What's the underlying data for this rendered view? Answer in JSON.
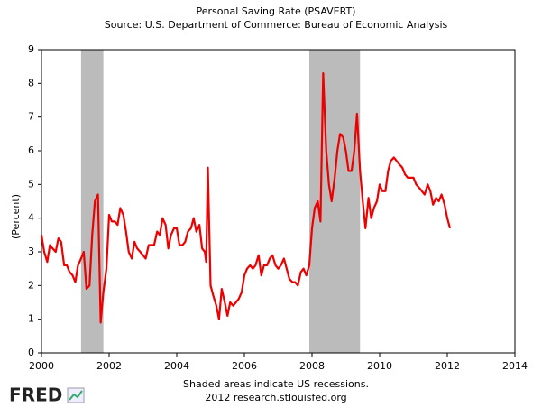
{
  "chart_data": {
    "type": "line",
    "title": "Personal Saving Rate (PSAVERT)",
    "subtitle": "Source: U.S. Department of Commerce: Bureau of Economic Analysis",
    "y_label": "(Percent)",
    "note": "Shaded areas indicate US recessions.",
    "source": "2012 research.stlouisfed.org",
    "logo": "FRED",
    "xlim": [
      2000,
      2014
    ],
    "xticks": [
      2000,
      2002,
      2004,
      2006,
      2008,
      2010,
      2012,
      2014
    ],
    "ylim": [
      0,
      9
    ],
    "yticks": [
      0,
      1,
      2,
      3,
      4,
      5,
      6,
      7,
      8,
      9
    ],
    "recessions": [
      [
        2001.17,
        2001.83
      ],
      [
        2007.92,
        2009.42
      ]
    ],
    "recession_color": "#bbbbbb",
    "series": [
      {
        "name": "PSAVERT",
        "color": "#ee0000",
        "x": [
          2000.0,
          2000.08,
          2000.17,
          2000.25,
          2000.33,
          2000.42,
          2000.5,
          2000.58,
          2000.67,
          2000.75,
          2000.83,
          2000.92,
          2001.0,
          2001.08,
          2001.17,
          2001.25,
          2001.33,
          2001.42,
          2001.5,
          2001.58,
          2001.67,
          2001.75,
          2001.83,
          2001.92,
          2002.0,
          2002.08,
          2002.17,
          2002.25,
          2002.33,
          2002.42,
          2002.5,
          2002.58,
          2002.67,
          2002.75,
          2002.83,
          2002.92,
          2003.0,
          2003.08,
          2003.17,
          2003.25,
          2003.33,
          2003.42,
          2003.5,
          2003.58,
          2003.67,
          2003.75,
          2003.83,
          2003.92,
          2004.0,
          2004.08,
          2004.17,
          2004.25,
          2004.33,
          2004.42,
          2004.5,
          2004.58,
          2004.67,
          2004.75,
          2004.83,
          2004.87,
          2004.92,
          2005.0,
          2005.08,
          2005.17,
          2005.25,
          2005.33,
          2005.42,
          2005.5,
          2005.58,
          2005.67,
          2005.75,
          2005.83,
          2005.92,
          2006.0,
          2006.08,
          2006.17,
          2006.25,
          2006.33,
          2006.42,
          2006.5,
          2006.58,
          2006.67,
          2006.75,
          2006.83,
          2006.92,
          2007.0,
          2007.08,
          2007.17,
          2007.25,
          2007.33,
          2007.42,
          2007.5,
          2007.58,
          2007.67,
          2007.75,
          2007.83,
          2007.92,
          2008.0,
          2008.08,
          2008.17,
          2008.25,
          2008.33,
          2008.42,
          2008.5,
          2008.58,
          2008.67,
          2008.75,
          2008.83,
          2008.92,
          2009.0,
          2009.08,
          2009.17,
          2009.25,
          2009.33,
          2009.42,
          2009.5,
          2009.58,
          2009.67,
          2009.75,
          2009.83,
          2009.92,
          2010.0,
          2010.08,
          2010.17,
          2010.25,
          2010.33,
          2010.42,
          2010.5,
          2010.58,
          2010.67,
          2010.75,
          2010.83,
          2010.92,
          2011.0,
          2011.08,
          2011.17,
          2011.25,
          2011.33,
          2011.42,
          2011.5,
          2011.58,
          2011.67,
          2011.75,
          2011.83,
          2011.92,
          2012.0,
          2012.08
        ],
        "values": [
          3.5,
          3.0,
          2.7,
          3.2,
          3.1,
          3.0,
          3.4,
          3.3,
          2.6,
          2.6,
          2.4,
          2.3,
          2.1,
          2.6,
          2.8,
          3.0,
          1.9,
          2.0,
          3.5,
          4.5,
          4.7,
          0.9,
          1.8,
          2.5,
          4.1,
          3.9,
          3.9,
          3.8,
          4.3,
          4.1,
          3.6,
          3.0,
          2.8,
          3.3,
          3.1,
          3.0,
          2.9,
          2.8,
          3.2,
          3.2,
          3.2,
          3.6,
          3.5,
          4.0,
          3.8,
          3.1,
          3.5,
          3.7,
          3.7,
          3.2,
          3.2,
          3.3,
          3.6,
          3.7,
          4.0,
          3.6,
          3.8,
          3.1,
          3.0,
          2.7,
          5.5,
          2.0,
          1.7,
          1.4,
          1.0,
          1.9,
          1.5,
          1.1,
          1.5,
          1.4,
          1.5,
          1.6,
          1.8,
          2.3,
          2.5,
          2.6,
          2.5,
          2.6,
          2.9,
          2.3,
          2.6,
          2.6,
          2.8,
          2.9,
          2.6,
          2.5,
          2.6,
          2.8,
          2.5,
          2.2,
          2.1,
          2.1,
          2.0,
          2.4,
          2.5,
          2.3,
          2.6,
          3.7,
          4.3,
          4.5,
          3.9,
          8.3,
          6.0,
          5.0,
          4.5,
          5.2,
          6.0,
          6.5,
          6.4,
          6.0,
          5.4,
          5.4,
          6.0,
          7.1,
          5.4,
          4.5,
          3.7,
          4.6,
          4.0,
          4.3,
          4.5,
          5.0,
          4.8,
          4.8,
          5.4,
          5.7,
          5.8,
          5.7,
          5.6,
          5.5,
          5.3,
          5.2,
          5.2,
          5.2,
          5.0,
          4.9,
          4.8,
          4.7,
          5.0,
          4.8,
          4.4,
          4.6,
          4.5,
          4.7,
          4.4,
          4.0,
          3.7
        ]
      }
    ]
  }
}
